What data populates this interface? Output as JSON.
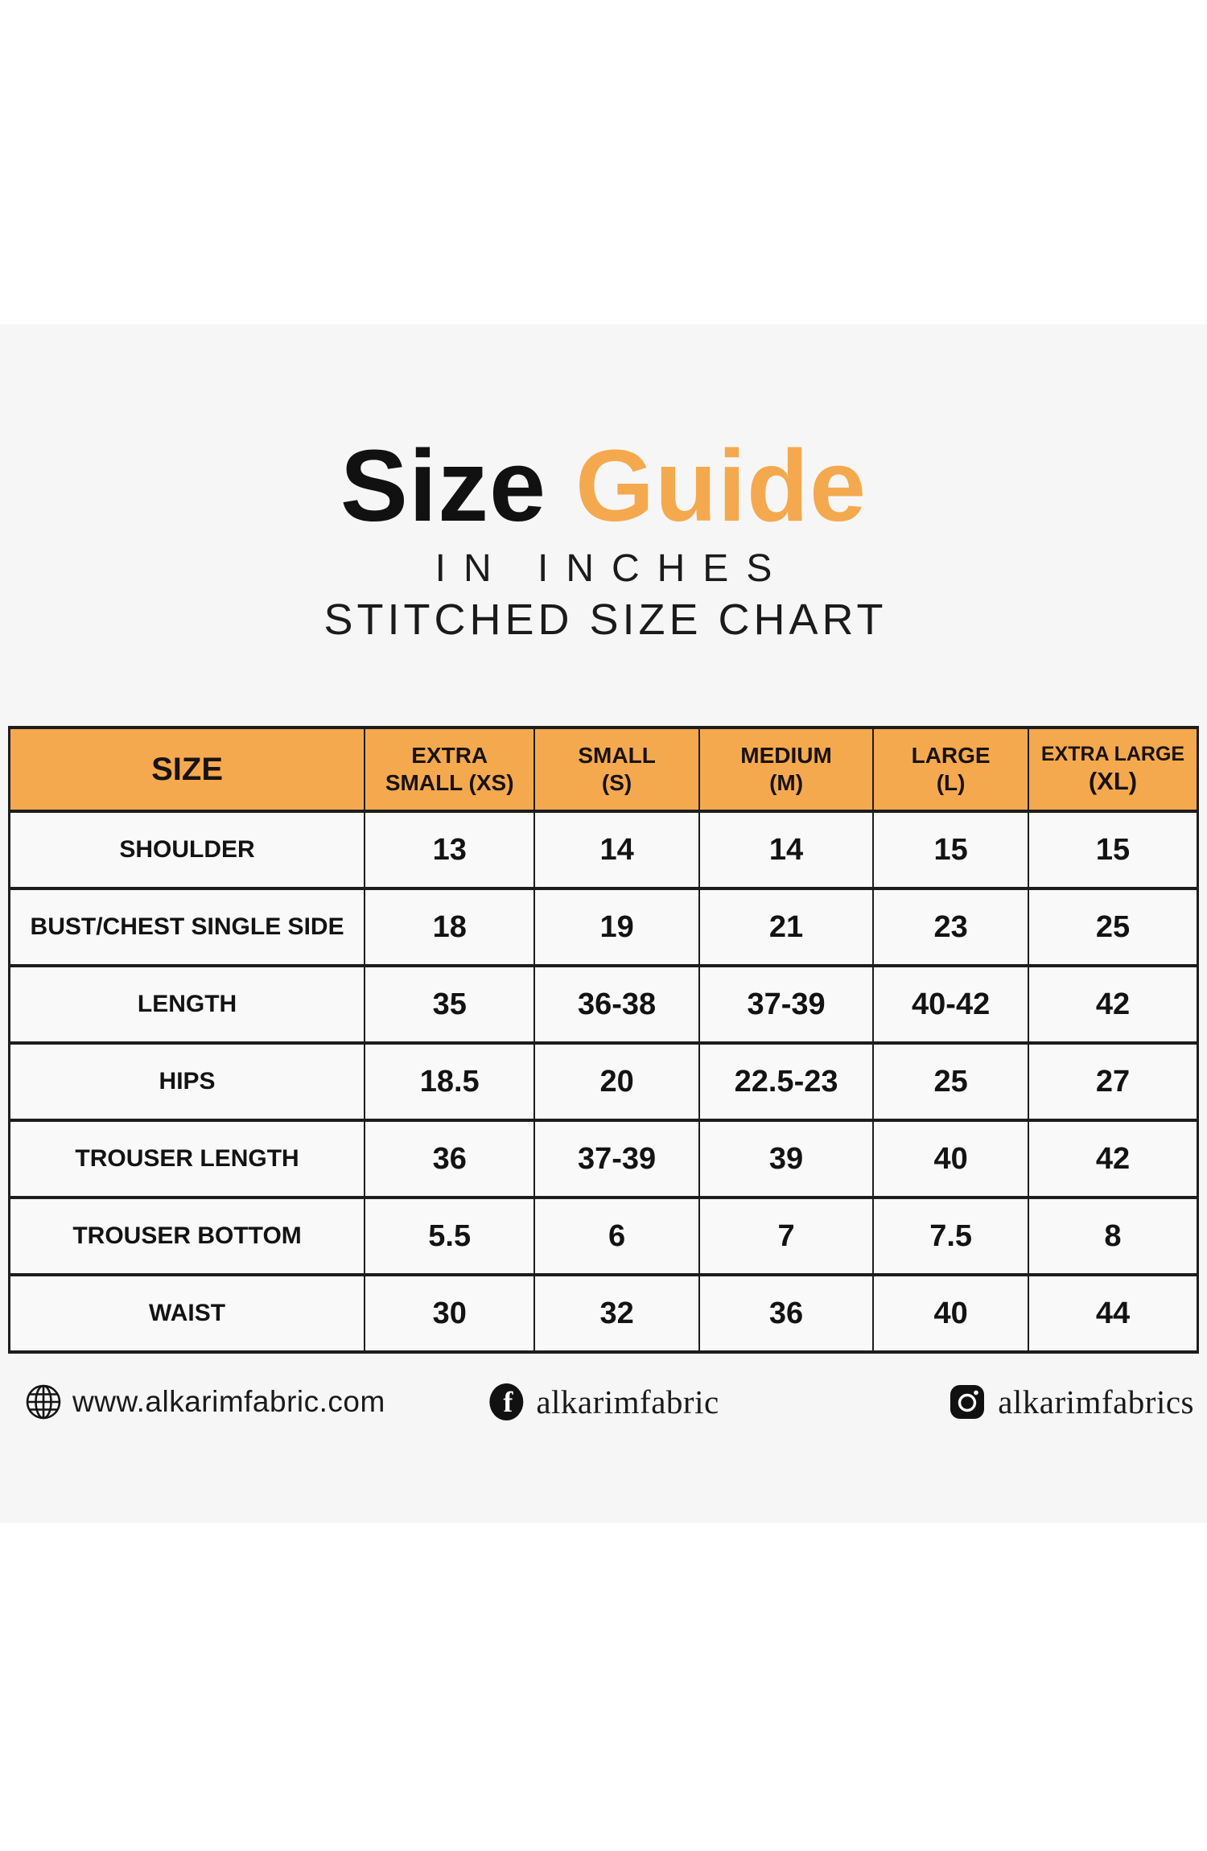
{
  "header": {
    "title_black": "Size",
    "title_orange": "Guide",
    "subtitle_units": "IN INCHES",
    "subtitle_chart": "STITCHED SIZE CHART"
  },
  "colors": {
    "accent_orange": "#F5A94E",
    "band_background": "#F6F6F7",
    "border_black": "#1D1D1D"
  },
  "chart_data": {
    "type": "table",
    "title": "Size Guide",
    "subtitle": "IN INCHES — STITCHED SIZE CHART",
    "units": "inches",
    "columns": [
      "SIZE",
      "EXTRA SMALL (XS)",
      "SMALL (S)",
      "MEDIUM (M)",
      "LARGE (L)",
      "EXTRA LARGE (XL)"
    ],
    "column_lines": [
      [
        "SIZE"
      ],
      [
        "EXTRA",
        "SMALL (XS)"
      ],
      [
        "SMALL",
        "(S)"
      ],
      [
        "MEDIUM",
        "(M)"
      ],
      [
        "LARGE",
        "(L)"
      ],
      [
        "EXTRA LARGE",
        "(XL)"
      ]
    ],
    "rows": [
      {
        "label": "SHOULDER",
        "values": [
          "13",
          "14",
          "14",
          "15",
          "15"
        ]
      },
      {
        "label": "BUST/CHEST SINGLE SIDE",
        "values": [
          "18",
          "19",
          "21",
          "23",
          "25"
        ]
      },
      {
        "label": "LENGTH",
        "values": [
          "35",
          "36-38",
          "37-39",
          "40-42",
          "42"
        ]
      },
      {
        "label": "HIPS",
        "values": [
          "18.5",
          "20",
          "22.5-23",
          "25",
          "27"
        ]
      },
      {
        "label": "TROUSER LENGTH",
        "values": [
          "36",
          "37-39",
          "39",
          "40",
          "42"
        ]
      },
      {
        "label": "TROUSER BOTTOM",
        "values": [
          "5.5",
          "6",
          "7",
          "7.5",
          "8"
        ]
      },
      {
        "label": "WAIST",
        "values": [
          "30",
          "32",
          "36",
          "40",
          "44"
        ]
      }
    ]
  },
  "footer": {
    "website": "www.alkarimfabric.com",
    "facebook": "alkarimfabric",
    "instagram": "alkarimfabrics",
    "icons": [
      "globe-icon",
      "facebook-icon",
      "instagram-icon"
    ]
  }
}
